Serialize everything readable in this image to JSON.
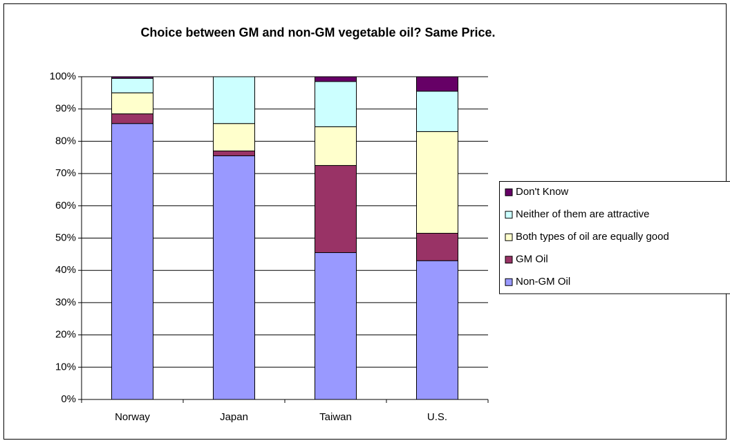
{
  "chart_data": {
    "type": "stacked_bar",
    "title": "Choice between GM and non-GM vegetable oil? Same Price.",
    "categories": [
      "Norway",
      "Japan",
      "Taiwan",
      "U.S."
    ],
    "series": [
      {
        "name": "Non-GM Oil",
        "color": "#9999ff",
        "values": [
          85.5,
          75.5,
          45.5,
          43
        ]
      },
      {
        "name": "GM Oil",
        "color": "#993366",
        "values": [
          3,
          1.5,
          27,
          8.5
        ]
      },
      {
        "name": "Both types of oil are equally good",
        "color": "#ffffcc",
        "values": [
          6.5,
          8.5,
          12,
          31.5
        ]
      },
      {
        "name": "Neither of them are attractive",
        "color": "#ccffff",
        "values": [
          4.5,
          14.5,
          14,
          12.5
        ]
      },
      {
        "name": "Don't Know",
        "color": "#660066",
        "values": [
          0.5,
          0,
          1.5,
          4.5
        ]
      }
    ],
    "ylim": [
      0,
      100
    ],
    "yticks": [
      {
        "value": 0,
        "label": "0%"
      },
      {
        "value": 10,
        "label": "10%"
      },
      {
        "value": 20,
        "label": "20%"
      },
      {
        "value": 30,
        "label": "30%"
      },
      {
        "value": 40,
        "label": "40%"
      },
      {
        "value": 50,
        "label": "50%"
      },
      {
        "value": 60,
        "label": "60%"
      },
      {
        "value": 70,
        "label": "70%"
      },
      {
        "value": 80,
        "label": "80%"
      },
      {
        "value": 90,
        "label": "90%"
      },
      {
        "value": 100,
        "label": "100%"
      }
    ],
    "grid": true,
    "legend": "right"
  }
}
